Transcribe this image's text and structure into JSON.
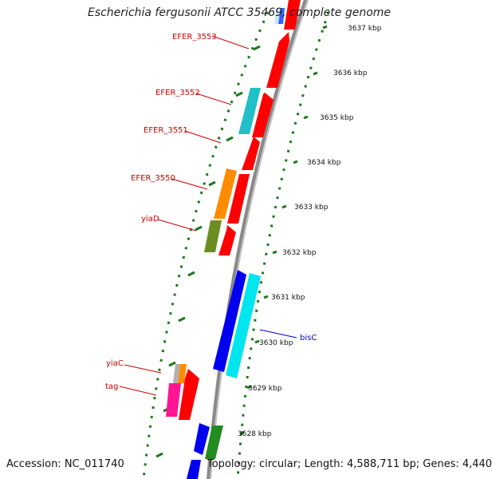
{
  "title": "Escherichia fergusonii ATCC 35469, complete genome",
  "footer": {
    "accession": "Accession: NC_011740",
    "summary": "Topology: circular; Length: 4,588,711 bp; Genes: 4,440"
  },
  "scale": {
    "unit": "kbp",
    "ticks": [
      "3637 kbp",
      "3636 kbp",
      "3635 kbp",
      "3634 kbp",
      "3633 kbp",
      "3632 kbp",
      "3631 kbp",
      "3630 kbp",
      "3629 kbp",
      "3628 kbp"
    ]
  },
  "labels": {
    "EFER_3553": "EFER_3553",
    "EFER_3552": "EFER_3552",
    "EFER_3551": "EFER_3551",
    "EFER_3550": "EFER_3550",
    "yiaD": "yiaD",
    "bisC": "bisC",
    "yiaC": "yiaC",
    "tag": "tag"
  },
  "colors": {
    "label_red": "#cc0000",
    "label_blue": "#0000cc",
    "backbone": "#808080",
    "dots": "#1a7a1a",
    "red": "#ff0000",
    "blue": "#0000ee",
    "cyan": "#00e5ee",
    "teal": "#20c0c8",
    "orange": "#ff8c00",
    "olive": "#6b8e23",
    "green": "#228b22",
    "magenta": "#ff1493",
    "grey": "#b0b0b0"
  }
}
